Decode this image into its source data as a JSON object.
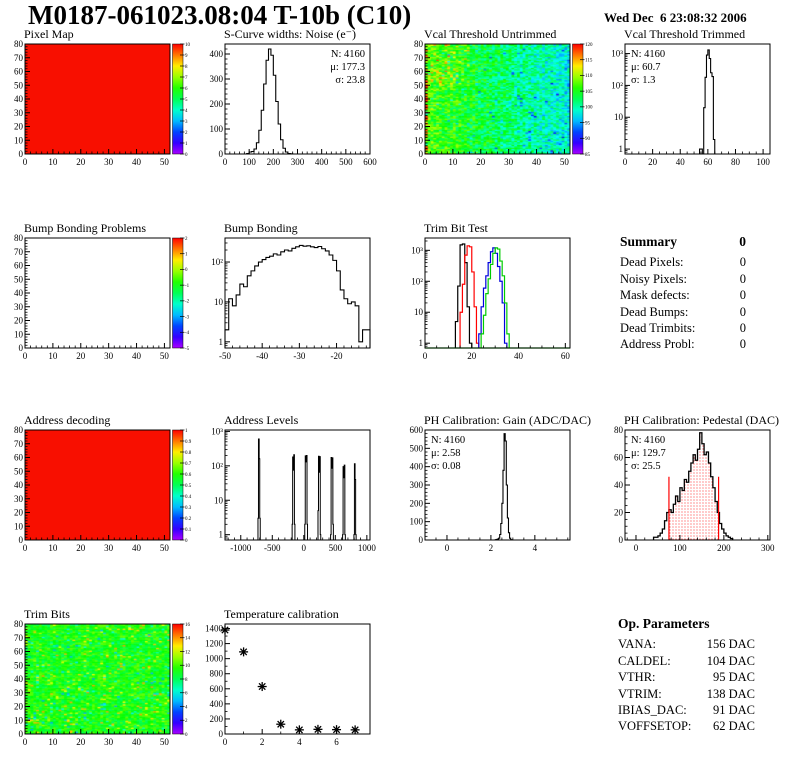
{
  "header": {
    "title": "M0187-061023.08:04 T-10b (C10)",
    "date": "Wed Dec  6 23:08:32 2006"
  },
  "summary": {
    "heading": "Summary",
    "total": "0",
    "rows": [
      {
        "label": "Dead Pixels:",
        "value": "0"
      },
      {
        "label": "Noisy Pixels:",
        "value": "0"
      },
      {
        "label": "Mask defects:",
        "value": "0"
      },
      {
        "label": "Dead Bumps:",
        "value": "0"
      },
      {
        "label": "Dead Trimbits:",
        "value": "0"
      },
      {
        "label": "Address Probl:",
        "value": "0"
      }
    ]
  },
  "op_parameters": {
    "heading": "Op. Parameters",
    "rows": [
      {
        "label": "VANA:",
        "value": "156 DAC"
      },
      {
        "label": "CALDEL:",
        "value": "104 DAC"
      },
      {
        "label": "VTHR:",
        "value": "95 DAC"
      },
      {
        "label": "VTRIM:",
        "value": "138 DAC"
      },
      {
        "label": "IBIAS_DAC:",
        "value": "91 DAC"
      },
      {
        "label": "VOFFSETOP:",
        "value": "62 DAC"
      }
    ]
  },
  "chart_data": [
    {
      "id": "pixel_map",
      "title": "Pixel Map",
      "type": "heatmap",
      "x": {
        "min": 0,
        "max": 52,
        "ticks": [
          0,
          10,
          20,
          30,
          40,
          50
        ],
        "minor": 2
      },
      "y": {
        "min": 0,
        "max": 80,
        "ticks": [
          0,
          10,
          20,
          30,
          40,
          50,
          60,
          70,
          80
        ],
        "minor": 2
      },
      "map": {
        "kind": "solid",
        "color": "#f80f00"
      },
      "colorbar": {
        "labels": [
          "10",
          "9",
          "8",
          "7",
          "6",
          "5",
          "4",
          "3",
          "2",
          "1",
          "0"
        ]
      }
    },
    {
      "id": "scurve_noise",
      "title": "S-Curve widths: Noise (e⁻)",
      "type": "hist",
      "x": {
        "min": 0,
        "max": 600,
        "ticks": [
          0,
          100,
          200,
          300,
          400,
          500,
          600
        ],
        "minor": 20
      },
      "y": {
        "min": 0,
        "max": 440,
        "ticks": [
          0,
          100,
          200,
          300,
          400
        ],
        "minor": 20
      },
      "data": {
        "x0": 90,
        "w": 10,
        "counts": [
          2,
          8,
          10,
          20,
          45,
          95,
          175,
          280,
          375,
          420,
          395,
          315,
          210,
          120,
          57,
          23,
          8,
          2,
          1
        ]
      },
      "stats": {
        "side": "right",
        "lines": [
          {
            "t": "N: 4160",
            "c": "#000000"
          },
          {
            "t": "μ: 177.3",
            "c": "#000000"
          },
          {
            "t": "σ: 23.8",
            "c": "#000000"
          }
        ]
      }
    },
    {
      "id": "vcal_untrimmed",
      "title": "Vcal Threshold Untrimmed",
      "type": "heatmap",
      "x": {
        "min": 0,
        "max": 52,
        "ticks": [
          0,
          10,
          20,
          30,
          40,
          50
        ],
        "minor": 2
      },
      "y": {
        "min": 0,
        "max": 80,
        "ticks": [
          0,
          10,
          20,
          30,
          40,
          50,
          60,
          70,
          80
        ],
        "minor": 2
      },
      "map": {
        "kind": "noise",
        "seed": 7,
        "base": 107,
        "gradX": 9,
        "noise": 9,
        "vmin": 85,
        "vmax": 120,
        "leftRedProb": 0.45,
        "warm": 5,
        "coldProb": 0.04,
        "coldShift": 6
      },
      "colorbar": {
        "labels": [
          "120",
          "115",
          "110",
          "105",
          "100",
          "95",
          "90",
          "85"
        ]
      }
    },
    {
      "id": "vcal_trimmed",
      "title": "Vcal Threshold Trimmed",
      "type": "hist",
      "x": {
        "min": 0,
        "max": 105,
        "ticks": [
          0,
          20,
          40,
          60,
          80,
          100
        ],
        "minor": 5
      },
      "y": {
        "log": true,
        "min": 0.7,
        "max": 2000
      },
      "data": {
        "x0": 53,
        "w": 1,
        "counts": [
          0,
          1,
          1,
          0,
          20,
          180,
          900,
          1300,
          700,
          250,
          190,
          2
        ]
      },
      "stats": {
        "side": "left",
        "lines": [
          {
            "t": "N: 4160",
            "c": "#000000"
          },
          {
            "t": "μ: 60.7",
            "c": "#000000"
          },
          {
            "t": "σ:  1.3",
            "c": "#000000"
          }
        ]
      }
    },
    {
      "id": "bump_problems",
      "title": "Bump Bonding Problems",
      "type": "heatmap",
      "x": {
        "min": 0,
        "max": 52,
        "ticks": [
          0,
          10,
          20,
          30,
          40,
          50
        ],
        "minor": 2
      },
      "y": {
        "min": 0,
        "max": 80,
        "ticks": [
          0,
          10,
          20,
          30,
          40,
          50,
          60,
          70,
          80
        ],
        "minor": 2
      },
      "map": {
        "kind": "solid",
        "color": "#ffffff"
      },
      "colorbar": {
        "labels": [
          "2",
          "1",
          "0",
          "-1",
          "-2",
          "-3",
          "-4",
          "-5"
        ]
      }
    },
    {
      "id": "bump_bonding",
      "title": "Bump Bonding",
      "type": "hist",
      "x": {
        "min": -50,
        "max": -11,
        "ticks": [
          -50,
          -40,
          -30,
          -20
        ],
        "minor": 2
      },
      "y": {
        "log": true,
        "min": 0.7,
        "max": 400
      },
      "data": {
        "x0": -50,
        "w": 1,
        "counts": [
          2,
          12,
          8,
          15,
          28,
          24,
          45,
          60,
          80,
          100,
          115,
          130,
          140,
          160,
          150,
          180,
          200,
          190,
          220,
          240,
          260,
          250,
          255,
          240,
          230,
          245,
          215,
          190,
          150,
          110,
          60,
          20,
          12,
          9,
          10,
          8,
          1,
          2,
          2
        ]
      }
    },
    {
      "id": "trimbit_test",
      "title": "Trim Bit Test",
      "type": "multihist",
      "x": {
        "min": 0,
        "max": 62,
        "ticks": [
          0,
          20,
          40,
          60
        ],
        "minor": 5
      },
      "y": {
        "log": true,
        "min": 0.7,
        "max": 2500
      },
      "series": [
        {
          "color": "#000000",
          "x0": 13,
          "w": 1,
          "counts": [
            5,
            70,
            1500,
            1600,
            400,
            15,
            1
          ]
        },
        {
          "color": "#ff0000",
          "x0": 15,
          "w": 1,
          "counts": [
            10,
            80,
            700,
            1400,
            1300,
            200,
            15,
            1
          ]
        },
        {
          "color": "#0000dd",
          "x0": 23,
          "w": 1,
          "counts": [
            2,
            15,
            60,
            150,
            400,
            900,
            1200,
            800,
            300,
            100,
            20,
            1
          ]
        },
        {
          "color": "#00cc00",
          "x0": 24,
          "w": 1,
          "counts": [
            2,
            8,
            40,
            120,
            350,
            800,
            1200,
            1100,
            450,
            150,
            20,
            2
          ],
          "baseline": true
        }
      ]
    },
    {
      "id": "address_decoding",
      "title": "Address decoding",
      "type": "heatmap",
      "x": {
        "min": 0,
        "max": 52,
        "ticks": [
          0,
          10,
          20,
          30,
          40,
          50
        ],
        "minor": 2
      },
      "y": {
        "min": 0,
        "max": 80,
        "ticks": [
          0,
          10,
          20,
          30,
          40,
          50,
          60,
          70,
          80
        ],
        "minor": 2
      },
      "map": {
        "kind": "solid",
        "color": "#f80f00"
      },
      "colorbar": {
        "labels": [
          "1",
          "0.9",
          "0.8",
          "0.7",
          "0.6",
          "0.5",
          "0.4",
          "0.3",
          "0.2",
          "0.1",
          "0"
        ]
      }
    },
    {
      "id": "address_levels",
      "title": "Address Levels",
      "type": "spikes",
      "x": {
        "min": -1250,
        "max": 1050,
        "ticks": [
          -1000,
          -500,
          0,
          500,
          1000
        ],
        "minor": 100
      },
      "y": {
        "log": true,
        "min": 0.7,
        "max": 1100
      },
      "clusters": [
        [
          [
            -727,
            8,
            3
          ],
          [
            -719,
            11,
            600
          ],
          [
            -708,
            9,
            160
          ],
          [
            -699,
            8,
            3
          ]
        ],
        [
          [
            -185,
            8,
            2
          ],
          [
            -177,
            10,
            180
          ],
          [
            -167,
            8,
            75
          ],
          [
            -159,
            10,
            210
          ],
          [
            -149,
            8,
            2
          ]
        ],
        [
          [
            15,
            8,
            2
          ],
          [
            23,
            10,
            195
          ],
          [
            33,
            8,
            130
          ],
          [
            41,
            10,
            200
          ],
          [
            51,
            8,
            2
          ]
        ],
        [
          [
            225,
            8,
            5
          ],
          [
            233,
            10,
            190
          ],
          [
            243,
            8,
            65
          ],
          [
            251,
            10,
            185
          ],
          [
            261,
            8,
            1
          ]
        ],
        [
          [
            425,
            8,
            1
          ],
          [
            433,
            10,
            175
          ],
          [
            443,
            8,
            85
          ],
          [
            451,
            10,
            170
          ],
          [
            461,
            8,
            2
          ]
        ],
        [
          [
            615,
            8,
            1
          ],
          [
            623,
            10,
            95
          ],
          [
            633,
            8,
            45
          ],
          [
            641,
            10,
            105
          ],
          [
            651,
            8,
            1
          ]
        ],
        [
          [
            795,
            8,
            1
          ],
          [
            803,
            10,
            115
          ],
          [
            813,
            9,
            40
          ],
          [
            822,
            8,
            1
          ]
        ]
      ]
    },
    {
      "id": "ph_gain",
      "title": "PH Calibration: Gain (ADC/DAC)",
      "type": "hist",
      "x": {
        "min": -1,
        "max": 5.6,
        "ticks": [
          0,
          2,
          4
        ],
        "minor": 0.5
      },
      "y": {
        "min": 0,
        "max": 600,
        "ticks": [
          0,
          100,
          200,
          300,
          400,
          500,
          600
        ],
        "minor": 20
      },
      "data": {
        "x0": 2.2,
        "w": 0.05,
        "counts": [
          2,
          3,
          5,
          10,
          30,
          90,
          200,
          380,
          580,
          540,
          300,
          120,
          40,
          10,
          2
        ]
      },
      "stats": {
        "side": "left",
        "lines": [
          {
            "t": "N: 4160",
            "c": "#000000"
          },
          {
            "t": "μ: 2.58",
            "c": "#000000"
          },
          {
            "t": "σ: 0.08",
            "c": "#000000"
          }
        ]
      }
    },
    {
      "id": "ph_pedestal",
      "title": "PH Calibration: Pedestal (DAC)",
      "type": "fillhist",
      "x": {
        "min": -25,
        "max": 305,
        "ticks": [
          0,
          100,
          200,
          300
        ],
        "minor": 20
      },
      "y": {
        "min": 0,
        "max": 80,
        "ticks": [
          0,
          20,
          40,
          60,
          80
        ],
        "minor": 5
      },
      "data": {
        "x0": 40,
        "w": 5,
        "counts": [
          2,
          2,
          3,
          5,
          8,
          14,
          20,
          22,
          20,
          26,
          32,
          28,
          38,
          36,
          44,
          42,
          50,
          56,
          62,
          58,
          66,
          78,
          70,
          62,
          64,
          56,
          46,
          38,
          28,
          20,
          12,
          8,
          5,
          3,
          2,
          1
        ]
      },
      "fill": {
        "from": 75,
        "to": 188,
        "vlineH": 46,
        "color": "#ff0000"
      },
      "stats": {
        "side": "left",
        "lines": [
          {
            "t": "N: 4160",
            "c": "#000000"
          },
          {
            "t": "μ: 129.7",
            "c": "#ff0000"
          },
          {
            "t": "σ: 25.5",
            "c": "#ff0000"
          }
        ]
      }
    },
    {
      "id": "trim_bits",
      "title": "Trim Bits",
      "type": "heatmap",
      "x": {
        "min": 0,
        "max": 52,
        "ticks": [
          0,
          10,
          20,
          30,
          40,
          50
        ],
        "minor": 2
      },
      "y": {
        "min": 0,
        "max": 80,
        "ticks": [
          0,
          10,
          20,
          30,
          40,
          50,
          60,
          70,
          80
        ],
        "minor": 2
      },
      "map": {
        "kind": "noise",
        "seed": 13,
        "base": 9.2,
        "gradX": 0,
        "noise": 2.8,
        "vmin": 0,
        "vmax": 16,
        "hotProb": 0.05,
        "hotShift": 3.4,
        "coldProb": 0.04,
        "coldShift": 3.5
      },
      "colorbar": {
        "labels": [
          "16",
          "14",
          "12",
          "10",
          "8",
          "6",
          "4",
          "2",
          "0"
        ]
      }
    },
    {
      "id": "temp_cal",
      "title": "Temperature calibration",
      "type": "scatter",
      "x": {
        "min": 0,
        "max": 7.8,
        "ticks": [
          0,
          2,
          4,
          6
        ],
        "minor": 1
      },
      "y": {
        "min": 0,
        "max": 1460,
        "ticks": [
          0,
          200,
          400,
          600,
          800,
          1000,
          1200,
          1400
        ],
        "minor": 100
      },
      "points": [
        [
          0,
          1380
        ],
        [
          1,
          1090
        ],
        [
          2,
          630
        ],
        [
          3,
          130
        ],
        [
          4,
          55
        ],
        [
          5,
          62
        ],
        [
          6,
          58
        ],
        [
          7,
          55
        ]
      ]
    }
  ]
}
